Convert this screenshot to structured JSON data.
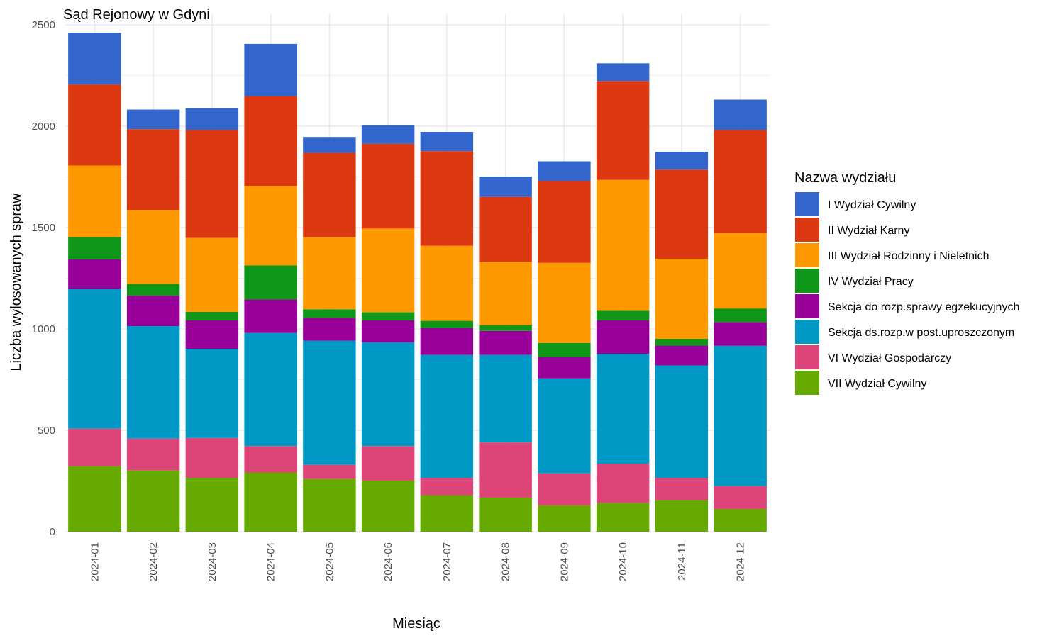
{
  "chart_data": {
    "type": "bar",
    "stacked": true,
    "title": "Sąd Rejonowy w Gdyni",
    "xlabel": "Miesiąc",
    "ylabel": "Liczba wylosowanych spraw",
    "ylim": [
      0,
      2500
    ],
    "yticks": [
      0,
      500,
      1000,
      1500,
      2000,
      2500
    ],
    "grid": true,
    "legend_title": "Nazwa wydziału",
    "legend_position": "right",
    "categories": [
      "2024-01",
      "2024-02",
      "2024-03",
      "2024-04",
      "2024-05",
      "2024-06",
      "2024-07",
      "2024-08",
      "2024-09",
      "2024-10",
      "2024-11",
      "2024-12"
    ],
    "series": [
      {
        "name": "VII Wydział Cywilny",
        "color": "#66aa00",
        "values": [
          323,
          302,
          265,
          292,
          260,
          252,
          180,
          168,
          130,
          142,
          155,
          112
        ]
      },
      {
        "name": "VI Wydział Gospodarczy",
        "color": "#dd4477",
        "values": [
          185,
          157,
          197,
          130,
          70,
          170,
          85,
          272,
          158,
          193,
          110,
          113
        ]
      },
      {
        "name": "Sekcja ds.rozp.w post.uproszczonym",
        "color": "#0099c6",
        "values": [
          690,
          555,
          440,
          558,
          612,
          512,
          607,
          432,
          468,
          542,
          555,
          692
        ]
      },
      {
        "name": "Sekcja do rozp.sprawy egzekucyjnych",
        "color": "#990099",
        "values": [
          145,
          150,
          140,
          165,
          113,
          108,
          133,
          118,
          105,
          165,
          98,
          116
        ]
      },
      {
        "name": "IV Wydział Pracy",
        "color": "#109618",
        "values": [
          110,
          58,
          42,
          168,
          42,
          40,
          35,
          28,
          70,
          48,
          33,
          68
        ]
      },
      {
        "name": "III Wydział Rodzinny i Nieletnich",
        "color": "#ff9900",
        "values": [
          353,
          365,
          365,
          392,
          355,
          413,
          370,
          313,
          395,
          645,
          395,
          373
        ]
      },
      {
        "name": "II Wydział Karny",
        "color": "#dc3912",
        "values": [
          400,
          398,
          532,
          443,
          417,
          418,
          467,
          320,
          403,
          488,
          440,
          507
        ]
      },
      {
        "name": "I Wydział Cywilny",
        "color": "#3366cc",
        "values": [
          255,
          97,
          108,
          258,
          78,
          92,
          95,
          100,
          98,
          87,
          88,
          150
        ]
      }
    ],
    "legend_order": [
      "I Wydział Cywilny",
      "II Wydział Karny",
      "III Wydział Rodzinny i Nieletnich",
      "IV Wydział Pracy",
      "Sekcja do rozp.sprawy egzekucyjnych",
      "Sekcja ds.rozp.w post.uproszczonym",
      "VI Wydział Gospodarczy",
      "VII Wydział Cywilny"
    ]
  }
}
